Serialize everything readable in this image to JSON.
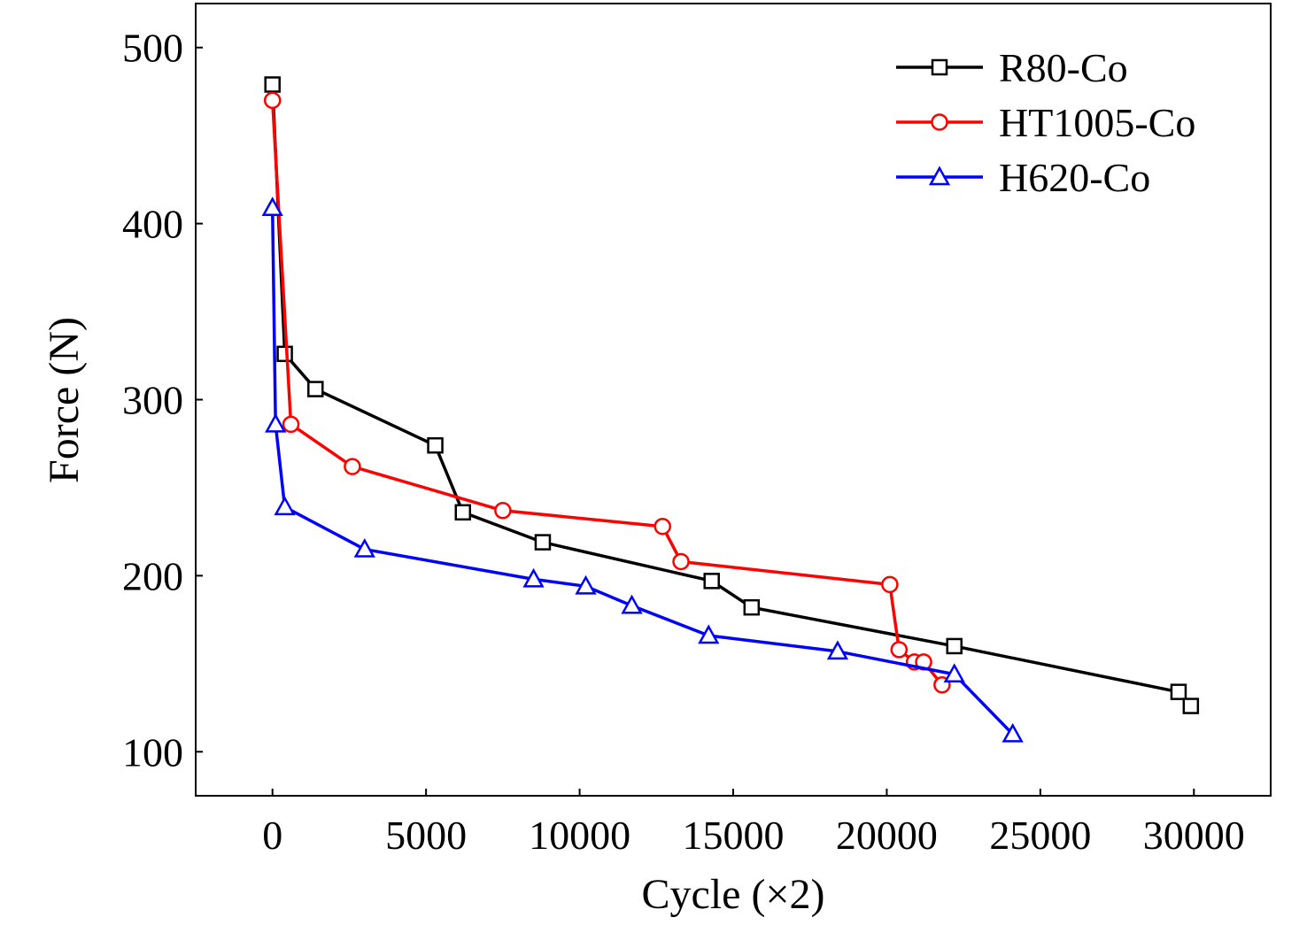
{
  "chart_data": {
    "type": "line",
    "title": "",
    "xlabel": "Cycle (×2)",
    "ylabel": "Force (N)",
    "xlim": [
      -2500,
      32500
    ],
    "ylim": [
      75,
      525
    ],
    "xticks": [
      0,
      5000,
      10000,
      15000,
      20000,
      25000,
      30000
    ],
    "yticks": [
      100,
      200,
      300,
      400,
      500
    ],
    "grid": false,
    "legend_position": "top-right",
    "series": [
      {
        "name": "R80-Co",
        "color": "#000000",
        "marker": "square",
        "x": [
          0,
          400,
          1400,
          5300,
          6200,
          8800,
          14300,
          15600,
          22200,
          29500,
          29900
        ],
        "y": [
          479,
          326,
          306,
          274,
          236,
          219,
          197,
          182,
          160,
          134,
          126
        ]
      },
      {
        "name": "HT1005-Co",
        "color": "#ff0000",
        "marker": "circle",
        "x": [
          0,
          600,
          2600,
          7500,
          12700,
          13300,
          20100,
          20400,
          20900,
          21200,
          21800
        ],
        "y": [
          470,
          286,
          262,
          237,
          228,
          208,
          195,
          158,
          151,
          151,
          138
        ]
      },
      {
        "name": "H620-Co",
        "color": "#0000ff",
        "marker": "triangle",
        "x": [
          0,
          100,
          400,
          3000,
          8500,
          10200,
          11700,
          14200,
          18400,
          22200,
          24100
        ],
        "y": [
          409,
          286,
          239,
          215,
          198,
          194,
          183,
          166,
          157,
          144,
          110
        ]
      }
    ]
  }
}
